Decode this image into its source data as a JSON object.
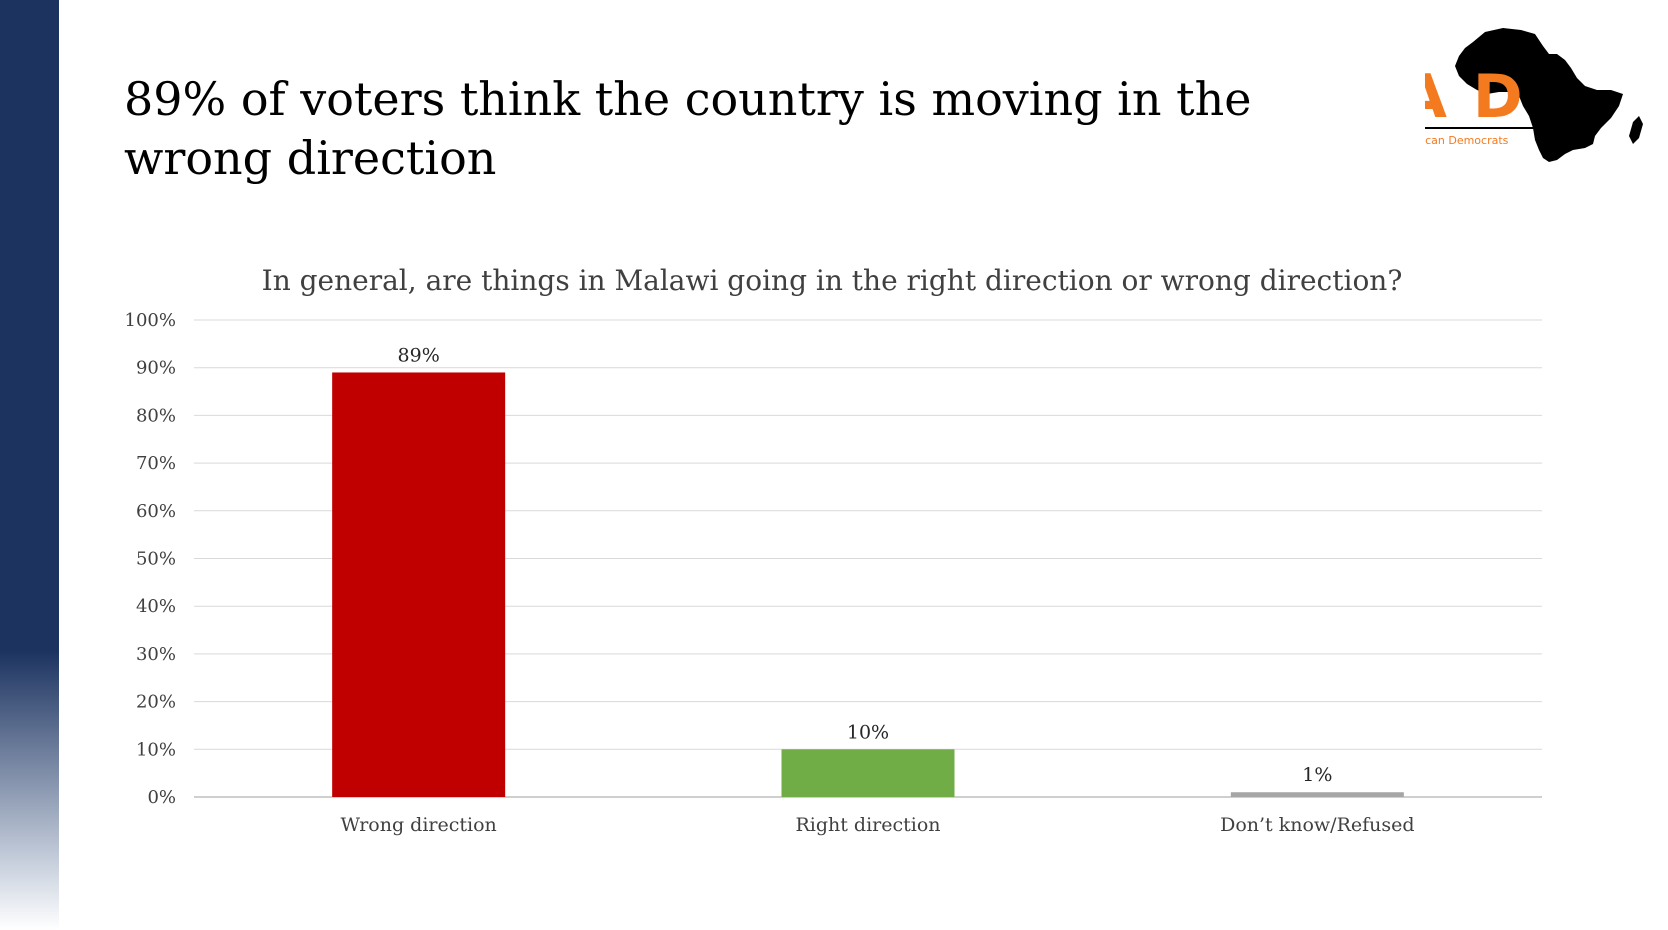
{
  "slide": {
    "title": "89% of voters think the country is moving in the wrong direction"
  },
  "logo": {
    "letters": "PAD",
    "tagline": "Platform for African Democrats",
    "icon": "africa-map-icon",
    "color": "#f47a20"
  },
  "colors": {
    "sidebar": "#1c3360",
    "wrong": "#c00000",
    "right": "#70ad47",
    "dont_know": "#a6a6a6"
  },
  "chart_data": {
    "type": "bar",
    "title": "In general, are things in Malawi going in the right direction or wrong direction?",
    "categories": [
      "Wrong direction",
      "Right direction",
      "Don’t know/Refused"
    ],
    "values": [
      89,
      10,
      1
    ],
    "data_labels": [
      "89%",
      "10%",
      "1%"
    ],
    "bar_colors": [
      "#c00000",
      "#70ad47",
      "#a6a6a6"
    ],
    "ylim": [
      0,
      100
    ],
    "y_ticks": [
      "0%",
      "10%",
      "20%",
      "30%",
      "40%",
      "50%",
      "60%",
      "70%",
      "80%",
      "90%",
      "100%"
    ],
    "grid": true,
    "legend": "none"
  }
}
